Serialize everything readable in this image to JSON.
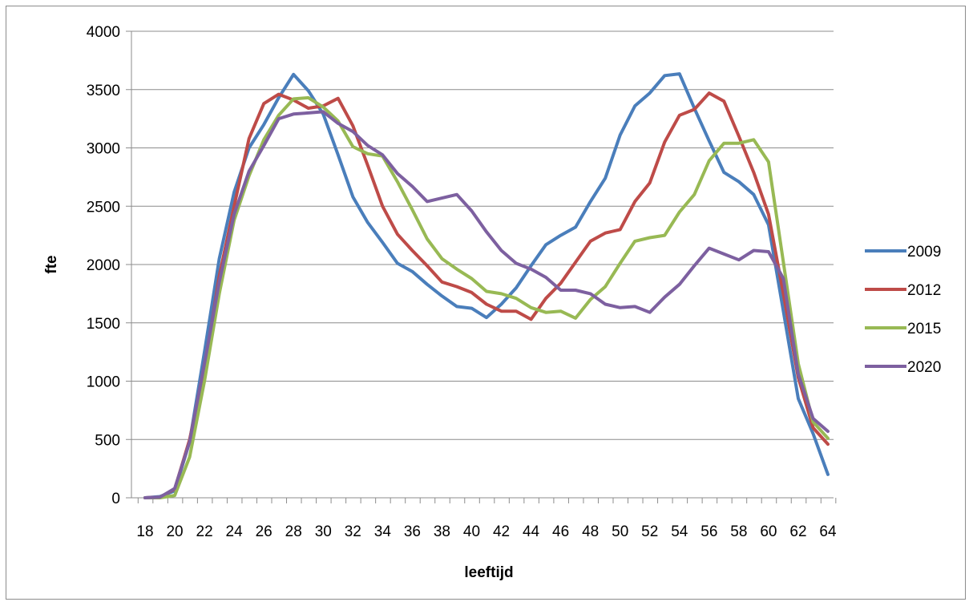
{
  "chart_data": {
    "type": "line",
    "title": "",
    "xlabel": "leeftijd",
    "ylabel": "fte",
    "ylim": [
      0,
      4000
    ],
    "yticks": [
      "0",
      "500",
      "1000",
      "1500",
      "2000",
      "2500",
      "3000",
      "3500",
      "4000"
    ],
    "x": [
      18,
      19,
      20,
      21,
      22,
      23,
      24,
      25,
      26,
      27,
      28,
      29,
      30,
      31,
      32,
      33,
      34,
      35,
      36,
      37,
      38,
      39,
      40,
      41,
      42,
      43,
      44,
      45,
      46,
      47,
      48,
      49,
      50,
      51,
      52,
      53,
      54,
      55,
      56,
      57,
      58,
      59,
      60,
      61,
      62,
      63,
      64
    ],
    "xtick_labels": [
      "18",
      "20",
      "22",
      "24",
      "26",
      "28",
      "30",
      "32",
      "34",
      "36",
      "38",
      "40",
      "42",
      "44",
      "46",
      "48",
      "50",
      "52",
      "54",
      "56",
      "58",
      "60",
      "62",
      "64"
    ],
    "grid": "horizontal",
    "legend_position": "right",
    "series": [
      {
        "name": "2009",
        "color": "#4a7ebb",
        "values": [
          0,
          10,
          60,
          480,
          1250,
          2050,
          2620,
          3000,
          3200,
          3430,
          3630,
          3490,
          3290,
          2940,
          2580,
          2360,
          2190,
          2010,
          1940,
          1830,
          1730,
          1640,
          1625,
          1545,
          1660,
          1800,
          1990,
          2170,
          2250,
          2320,
          2540,
          2740,
          3110,
          3360,
          3470,
          3620,
          3635,
          3340,
          3060,
          2790,
          2710,
          2600,
          2340,
          1600,
          850,
          550,
          200
        ]
      },
      {
        "name": "2012",
        "color": "#be4b48",
        "values": [
          0,
          5,
          75,
          500,
          1100,
          1900,
          2500,
          3080,
          3380,
          3460,
          3410,
          3340,
          3360,
          3425,
          3190,
          2850,
          2500,
          2260,
          2120,
          1990,
          1850,
          1810,
          1760,
          1660,
          1600,
          1600,
          1530,
          1710,
          1840,
          2020,
          2200,
          2270,
          2300,
          2540,
          2700,
          3050,
          3280,
          3330,
          3470,
          3400,
          3100,
          2790,
          2430,
          1750,
          1030,
          600,
          460
        ]
      },
      {
        "name": "2015",
        "color": "#98b954",
        "values": [
          0,
          0,
          20,
          350,
          1000,
          1750,
          2380,
          2760,
          3070,
          3280,
          3420,
          3430,
          3350,
          3230,
          3010,
          2950,
          2930,
          2710,
          2470,
          2220,
          2050,
          1960,
          1880,
          1770,
          1750,
          1710,
          1630,
          1590,
          1600,
          1540,
          1700,
          1810,
          2010,
          2200,
          2230,
          2250,
          2450,
          2600,
          2890,
          3040,
          3040,
          3070,
          2880,
          2020,
          1150,
          650,
          510
        ]
      },
      {
        "name": "2020",
        "color": "#7d60a0",
        "values": [
          0,
          5,
          80,
          480,
          1150,
          1850,
          2430,
          2800,
          3020,
          3250,
          3290,
          3300,
          3310,
          3210,
          3140,
          3020,
          2940,
          2780,
          2670,
          2540,
          2570,
          2600,
          2460,
          2280,
          2120,
          2010,
          1960,
          1890,
          1780,
          1780,
          1750,
          1660,
          1630,
          1640,
          1590,
          1720,
          1830,
          1990,
          2140,
          2090,
          2040,
          2120,
          2110,
          1880,
          1060,
          680,
          570
        ]
      }
    ]
  }
}
